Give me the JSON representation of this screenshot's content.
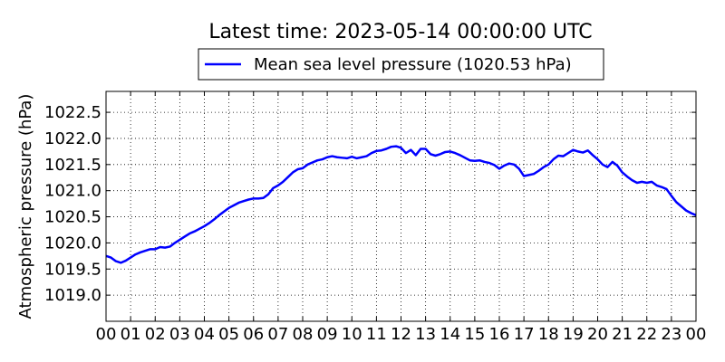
{
  "chart_data": {
    "type": "line",
    "title": "Latest time: 2023-05-14 00:00:00 UTC",
    "xlabel": "",
    "ylabel": "Atmospheric pressure (hPa)",
    "xlim": [
      0,
      24
    ],
    "ylim": [
      1018.5,
      1022.9
    ],
    "grid": true,
    "legend_position": "top-center",
    "x_tick_labels": [
      "00",
      "01",
      "02",
      "03",
      "04",
      "05",
      "06",
      "07",
      "08",
      "09",
      "10",
      "11",
      "12",
      "13",
      "14",
      "15",
      "16",
      "17",
      "18",
      "19",
      "20",
      "21",
      "22",
      "23",
      "00"
    ],
    "y_ticks": [
      1019.0,
      1019.5,
      1020.0,
      1020.5,
      1021.0,
      1021.5,
      1022.0,
      1022.5
    ],
    "y_tick_labels": [
      "1019.0",
      "1019.5",
      "1020.0",
      "1020.5",
      "1021.0",
      "1021.5",
      "1022.0",
      "1022.5"
    ],
    "series": [
      {
        "name": "Mean sea level pressure (1020.53 hPa)",
        "color": "#0000ff",
        "points": [
          [
            0.0,
            1019.75
          ],
          [
            0.2,
            1019.72
          ],
          [
            0.4,
            1019.65
          ],
          [
            0.6,
            1019.62
          ],
          [
            0.8,
            1019.66
          ],
          [
            1.0,
            1019.72
          ],
          [
            1.2,
            1019.78
          ],
          [
            1.4,
            1019.82
          ],
          [
            1.6,
            1019.85
          ],
          [
            1.8,
            1019.88
          ],
          [
            2.0,
            1019.88
          ],
          [
            2.2,
            1019.92
          ],
          [
            2.4,
            1019.91
          ],
          [
            2.6,
            1019.93
          ],
          [
            2.8,
            1020.0
          ],
          [
            3.0,
            1020.06
          ],
          [
            3.2,
            1020.12
          ],
          [
            3.4,
            1020.18
          ],
          [
            3.6,
            1020.22
          ],
          [
            3.8,
            1020.27
          ],
          [
            4.0,
            1020.32
          ],
          [
            4.2,
            1020.38
          ],
          [
            4.4,
            1020.45
          ],
          [
            4.6,
            1020.53
          ],
          [
            4.8,
            1020.6
          ],
          [
            5.0,
            1020.67
          ],
          [
            5.2,
            1020.72
          ],
          [
            5.4,
            1020.77
          ],
          [
            5.6,
            1020.8
          ],
          [
            5.8,
            1020.83
          ],
          [
            6.0,
            1020.85
          ],
          [
            6.2,
            1020.85
          ],
          [
            6.4,
            1020.86
          ],
          [
            6.6,
            1020.93
          ],
          [
            6.8,
            1021.05
          ],
          [
            7.0,
            1021.1
          ],
          [
            7.2,
            1021.17
          ],
          [
            7.4,
            1021.26
          ],
          [
            7.6,
            1021.35
          ],
          [
            7.8,
            1021.41
          ],
          [
            8.0,
            1021.43
          ],
          [
            8.2,
            1021.5
          ],
          [
            8.4,
            1021.54
          ],
          [
            8.6,
            1021.58
          ],
          [
            8.8,
            1021.6
          ],
          [
            9.0,
            1021.64
          ],
          [
            9.2,
            1021.66
          ],
          [
            9.4,
            1021.64
          ],
          [
            9.6,
            1021.63
          ],
          [
            9.8,
            1021.62
          ],
          [
            10.0,
            1021.65
          ],
          [
            10.2,
            1021.62
          ],
          [
            10.4,
            1021.64
          ],
          [
            10.6,
            1021.66
          ],
          [
            10.8,
            1021.72
          ],
          [
            11.0,
            1021.76
          ],
          [
            11.2,
            1021.77
          ],
          [
            11.4,
            1021.8
          ],
          [
            11.6,
            1021.84
          ],
          [
            11.8,
            1021.85
          ],
          [
            12.0,
            1021.82
          ],
          [
            12.2,
            1021.72
          ],
          [
            12.4,
            1021.78
          ],
          [
            12.6,
            1021.68
          ],
          [
            12.8,
            1021.8
          ],
          [
            13.0,
            1021.8
          ],
          [
            13.2,
            1021.7
          ],
          [
            13.4,
            1021.67
          ],
          [
            13.6,
            1021.7
          ],
          [
            13.8,
            1021.74
          ],
          [
            14.0,
            1021.75
          ],
          [
            14.2,
            1021.72
          ],
          [
            14.4,
            1021.68
          ],
          [
            14.6,
            1021.63
          ],
          [
            14.8,
            1021.58
          ],
          [
            15.0,
            1021.57
          ],
          [
            15.2,
            1021.58
          ],
          [
            15.4,
            1021.55
          ],
          [
            15.6,
            1021.53
          ],
          [
            15.8,
            1021.49
          ],
          [
            16.0,
            1021.42
          ],
          [
            16.2,
            1021.48
          ],
          [
            16.4,
            1021.52
          ],
          [
            16.6,
            1021.5
          ],
          [
            16.8,
            1021.42
          ],
          [
            17.0,
            1021.28
          ],
          [
            17.2,
            1021.3
          ],
          [
            17.4,
            1021.32
          ],
          [
            17.6,
            1021.38
          ],
          [
            17.8,
            1021.45
          ],
          [
            18.0,
            1021.5
          ],
          [
            18.2,
            1021.6
          ],
          [
            18.4,
            1021.67
          ],
          [
            18.6,
            1021.66
          ],
          [
            18.8,
            1021.72
          ],
          [
            19.0,
            1021.78
          ],
          [
            19.2,
            1021.75
          ],
          [
            19.4,
            1021.73
          ],
          [
            19.6,
            1021.77
          ],
          [
            19.8,
            1021.68
          ],
          [
            20.0,
            1021.6
          ],
          [
            20.2,
            1021.5
          ],
          [
            20.4,
            1021.45
          ],
          [
            20.6,
            1021.55
          ],
          [
            20.8,
            1021.48
          ],
          [
            21.0,
            1021.35
          ],
          [
            21.2,
            1021.27
          ],
          [
            21.4,
            1021.2
          ],
          [
            21.6,
            1021.15
          ],
          [
            21.8,
            1021.17
          ],
          [
            22.0,
            1021.15
          ],
          [
            22.2,
            1021.17
          ],
          [
            22.4,
            1021.1
          ],
          [
            22.6,
            1021.07
          ],
          [
            22.8,
            1021.03
          ],
          [
            23.0,
            1020.9
          ],
          [
            23.2,
            1020.78
          ],
          [
            23.4,
            1020.7
          ],
          [
            23.6,
            1020.62
          ],
          [
            23.8,
            1020.57
          ],
          [
            24.0,
            1020.53
          ]
        ]
      }
    ]
  }
}
